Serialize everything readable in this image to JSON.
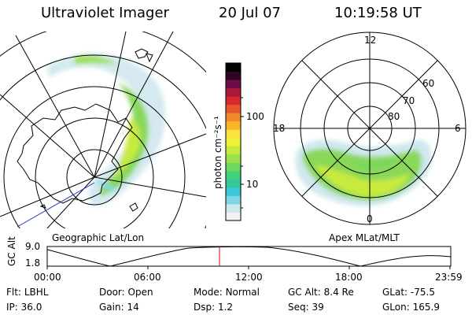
{
  "header": {
    "instrument": "Ultraviolet Imager",
    "date": "20 Jul 07",
    "time": "10:19:58 UT"
  },
  "geo_panel": {
    "caption": "Geographic Lat/Lon"
  },
  "apex_panel": {
    "caption": "Apex MLat/MLT",
    "mlt_labels": {
      "top": "12",
      "left": "18",
      "right": "6",
      "bottom": "0"
    },
    "lat_labels": [
      "60",
      "70",
      "80"
    ]
  },
  "colorbar": {
    "unit_label": "photon cm⁻²s⁻¹",
    "ticks": [
      "100",
      "10"
    ],
    "colors": [
      "#f2f2f2",
      "#cfe8ee",
      "#7fd7e6",
      "#3cc7d8",
      "#33c89a",
      "#3fd27a",
      "#6ed85a",
      "#9ee04a",
      "#c8ea3c",
      "#eef237",
      "#fbe23a",
      "#f7b62a",
      "#f0892a",
      "#e8562c",
      "#d62a2c",
      "#a8173c",
      "#6f0b49",
      "#2e0526",
      "#000000"
    ]
  },
  "altitude_plot": {
    "ylabel": "GC Alt",
    "ymax_label": "9.0",
    "ymin_label": "1.8",
    "current_time_marker": "10:19:58",
    "x_ticks": [
      "00:00",
      "06:00",
      "12:00",
      "18:00",
      "23:59"
    ]
  },
  "status": {
    "row1": [
      {
        "key": "Flt:",
        "value": "LBHL"
      },
      {
        "key": "Door:",
        "value": "Open"
      },
      {
        "key": "Mode:",
        "value": "Normal"
      },
      {
        "key": "GC Alt:",
        "value": "8.4 Re"
      },
      {
        "key": "GLat:",
        "value": "-75.5"
      }
    ],
    "row2": [
      {
        "key": "IP:",
        "value": "36.0"
      },
      {
        "key": "Gain:",
        "value": "14"
      },
      {
        "key": "Dsp:",
        "value": "1.2"
      },
      {
        "key": "Seq:",
        "value": "39"
      },
      {
        "key": "GLon:",
        "value": "165.9"
      }
    ]
  }
}
